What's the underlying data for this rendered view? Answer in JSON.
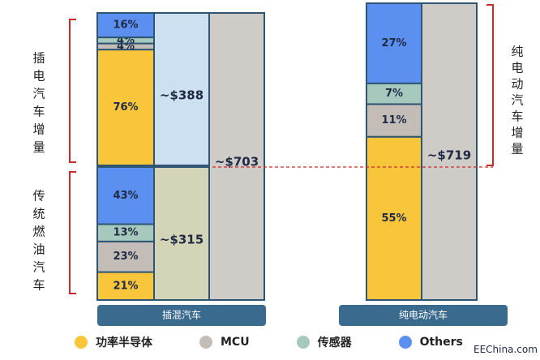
{
  "chart_data": {
    "type": "bar",
    "categories": [
      "插混汽车",
      "纯电动汽车"
    ],
    "phev": {
      "group_label": "插混汽车",
      "increment": {
        "label": "插电汽车增量",
        "segments": [
          {
            "series": "功率半导体",
            "percent": 76,
            "label": "76%"
          },
          {
            "series": "MCU",
            "percent": 4,
            "label": "4%"
          },
          {
            "series": "传感器",
            "percent": 4,
            "label": "4%"
          },
          {
            "series": "Others",
            "percent": 16,
            "label": "16%"
          }
        ],
        "total_label": "~$388",
        "total_value": 388
      },
      "base": {
        "label": "传统燃油汽车",
        "segments": [
          {
            "series": "功率半导体",
            "percent": 21,
            "label": "21%"
          },
          {
            "series": "MCU",
            "percent": 23,
            "label": "23%"
          },
          {
            "series": "传感器",
            "percent": 13,
            "label": "13%"
          },
          {
            "series": "Others",
            "percent": 43,
            "label": "43%"
          }
        ],
        "total_label": "~$315",
        "total_value": 315
      },
      "total_label": "~$703",
      "total_value": 703
    },
    "bev": {
      "group_label": "纯电动汽车",
      "increment": {
        "label": "纯电动汽车增量",
        "segments": [
          {
            "series": "功率半导体",
            "percent": 55,
            "label": "55%"
          },
          {
            "series": "MCU",
            "percent": 11,
            "label": "11%"
          },
          {
            "series": "传感器",
            "percent": 7,
            "label": "7%"
          },
          {
            "series": "Others",
            "percent": 27,
            "label": "27%"
          }
        ]
      },
      "total_label": "~$719",
      "total_value": 719
    },
    "legend": [
      {
        "name": "功率半导体",
        "color": "#f9c53b"
      },
      {
        "name": "MCU",
        "color": "#c4bcb7"
      },
      {
        "name": "传感器",
        "color": "#a7c9bd"
      },
      {
        "name": "Others",
        "color": "#5b8ff0"
      }
    ],
    "colors": {
      "功率半导体": "#f9c53b",
      "MCU": "#c4bcb7",
      "传感器": "#a7c9bd",
      "Others": "#5b8ff0",
      "increment_total": "#cde0f2",
      "base_total": "#d4d4b8",
      "grand_total": "#cfcbc7",
      "outline": "#2e5573",
      "bracket": "#cc2a2a",
      "group_bar": "#3a6a8e"
    }
  },
  "watermark": "EEChina.com"
}
